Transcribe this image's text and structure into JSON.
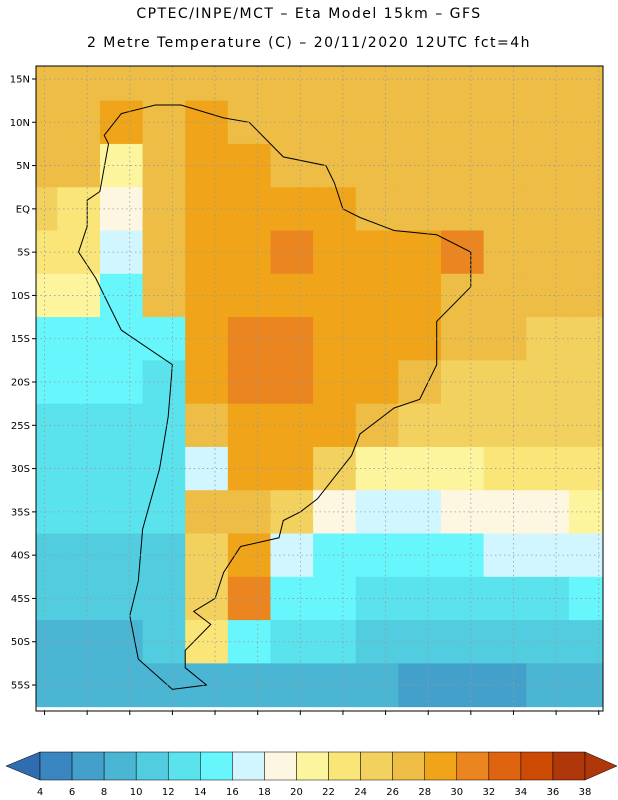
{
  "header": {
    "line1": "CPTEC/INPE/MCT –  Eta Model 15km – GFS",
    "line2": "2 Metre Temperature (C) – 20/11/2020 12UTC fct=4h"
  },
  "chart_data": {
    "type": "heatmap",
    "title": "2 Metre Temperature (C)",
    "model": "Eta Model 15km – GFS",
    "institution": "CPTEC/INPE/MCT",
    "run": "20/11/2020 12UTC",
    "forecast": "fct=4h",
    "x_axis": {
      "range_lon": [
        -86,
        -19.5
      ],
      "ticks": [
        -85,
        -80,
        -75,
        -70,
        -65,
        -60,
        -55,
        -50,
        -45,
        -40,
        -35,
        -30,
        -25,
        -20
      ],
      "tick_labels": [
        "85W",
        "80W",
        "75W",
        "70W",
        "65W",
        "60W",
        "55W",
        "50W",
        "45W",
        "40W",
        "35W",
        "30W",
        "25W",
        "20W"
      ]
    },
    "y_axis": {
      "range_lat": [
        -58,
        16.5
      ],
      "ticks": [
        15,
        10,
        5,
        0,
        -5,
        -10,
        -15,
        -20,
        -25,
        -30,
        -35,
        -40,
        -45,
        -50,
        -55
      ],
      "tick_labels": [
        "15N",
        "10N",
        "5N",
        "EQ",
        "5S",
        "10S",
        "15S",
        "20S",
        "25S",
        "30S",
        "35S",
        "40S",
        "45S",
        "50S",
        "55S"
      ]
    },
    "grid": true,
    "colorbar": {
      "breaks": [
        4,
        6,
        8,
        10,
        12,
        14,
        16,
        18,
        20,
        22,
        24,
        26,
        28,
        30,
        32,
        34,
        36,
        38
      ],
      "labels": [
        "4",
        "6",
        "8",
        "10",
        "12",
        "14",
        "16",
        "18",
        "20",
        "22",
        "24",
        "26",
        "28",
        "30",
        "32",
        "34",
        "36",
        "38"
      ],
      "colors": [
        "#2f6db0",
        "#3a86c1",
        "#43a0cb",
        "#4ab6d4",
        "#52cde0",
        "#5ae3ec",
        "#66f6fb",
        "#d2f6ff",
        "#fdf7e1",
        "#fcf59e",
        "#f9e578",
        "#f2d15e",
        "#edbd45",
        "#f0a419",
        "#ea8520",
        "#df6410",
        "#cc4a04",
        "#b0370a"
      ]
    },
    "grid_lon": [
      -86,
      -81,
      -76,
      -71,
      -66,
      -61,
      -56,
      -51,
      -46,
      -41,
      -36,
      -31,
      -26,
      -21
    ],
    "grid_lat": [
      15,
      10,
      5,
      0,
      -5,
      -10,
      -15,
      -20,
      -25,
      -30,
      -35,
      -40,
      -45,
      -50,
      -55
    ],
    "values_C": [
      [
        27,
        27,
        27,
        27,
        27,
        27,
        26,
        26,
        26,
        26,
        26,
        26,
        26,
        26
      ],
      [
        27,
        27,
        28,
        27,
        28,
        27,
        27,
        27,
        27,
        27,
        27,
        26,
        26,
        26
      ],
      [
        27,
        27,
        21,
        27,
        28,
        28,
        26,
        27,
        27,
        27,
        27,
        26,
        26,
        26
      ],
      [
        24,
        23,
        19,
        27,
        28,
        28,
        28,
        28,
        27,
        27,
        27,
        27,
        26,
        26
      ],
      [
        23,
        22,
        16,
        27,
        28,
        29,
        30,
        29,
        28,
        28,
        31,
        26,
        26,
        26
      ],
      [
        21,
        21,
        14,
        26,
        28,
        28,
        29,
        29,
        28,
        28,
        27,
        26,
        26,
        26
      ],
      [
        15,
        15,
        15,
        14,
        29,
        31,
        30,
        29,
        29,
        28,
        26,
        26,
        25,
        25
      ],
      [
        14,
        14,
        14,
        13,
        28,
        31,
        30,
        29,
        28,
        27,
        25,
        25,
        25,
        25
      ],
      [
        13,
        13,
        13,
        13,
        27,
        29,
        29,
        28,
        27,
        24,
        24,
        24,
        24,
        24
      ],
      [
        13,
        13,
        13,
        13,
        16,
        28,
        28,
        25,
        21,
        21,
        21,
        22,
        22,
        23
      ],
      [
        12,
        12,
        12,
        12,
        26,
        27,
        25,
        18,
        17,
        17,
        18,
        19,
        19,
        20
      ],
      [
        11,
        11,
        11,
        11,
        25,
        28,
        16,
        15,
        14,
        14,
        15,
        16,
        16,
        17
      ],
      [
        10,
        10,
        10,
        10,
        24,
        30,
        15,
        14,
        13,
        12,
        12,
        13,
        13,
        14
      ],
      [
        9,
        9,
        9,
        10,
        22,
        14,
        13,
        12,
        11,
        10,
        10,
        10,
        11,
        11
      ],
      [
        8,
        8,
        8,
        8,
        8,
        9,
        9,
        8,
        8,
        7,
        7,
        7,
        8,
        8
      ]
    ]
  }
}
